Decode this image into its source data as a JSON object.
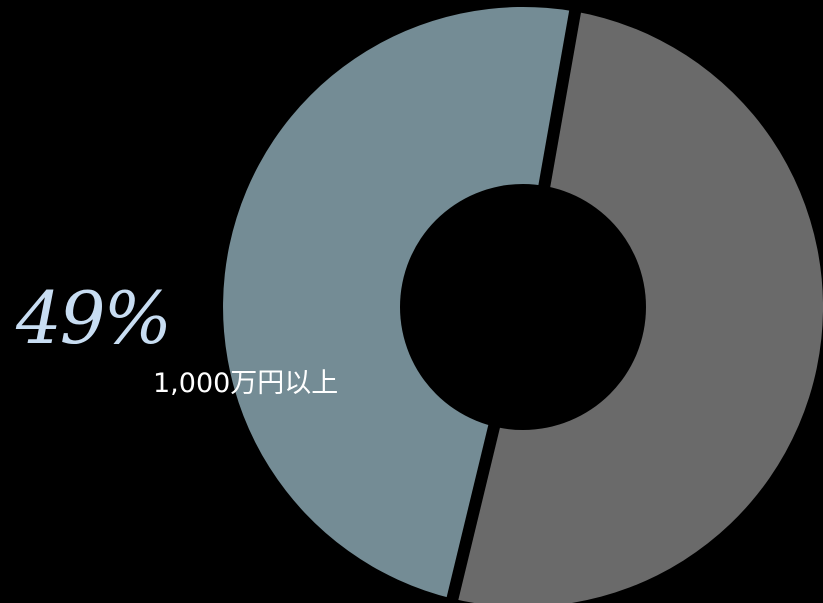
{
  "chart_data": {
    "type": "pie",
    "style": "donut",
    "slices": [
      {
        "category": "1,000万円以上",
        "value": 49,
        "percent_label": "49%",
        "color": "#748c95"
      },
      {
        "value": 51,
        "color": "#6a6a6a"
      }
    ],
    "start_angle_deg": 10,
    "direction": "counterclockwise",
    "colors": {
      "background": "#000000",
      "separator": "#000000",
      "percent_label": "#c8ddf2",
      "category_label": "#ffffff"
    }
  }
}
